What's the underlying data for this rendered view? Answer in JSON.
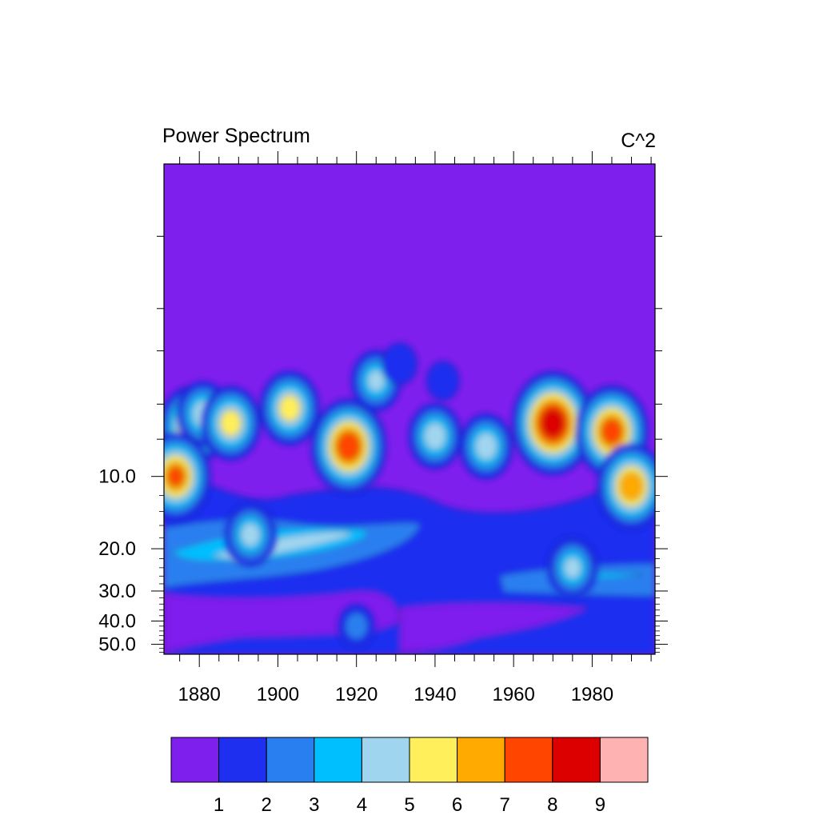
{
  "chart_data": {
    "type": "heatmap",
    "title": "Power Spectrum",
    "units": "C^2",
    "x_range": [
      1871,
      1996
    ],
    "y_range": [
      0.5,
      55
    ],
    "y_scale": "log",
    "y_inverted": true,
    "x_ticks": [
      "1880",
      "1900",
      "1920",
      "1940",
      "1960",
      "1980"
    ],
    "y_ticks": [
      "10.0",
      "20.0",
      "30.0",
      "40.0",
      "50.0"
    ],
    "levels": [
      "1",
      "2",
      "3",
      "4",
      "5",
      "6",
      "7",
      "8",
      "9"
    ],
    "colors": [
      "#7f1fee",
      "#1e2ff0",
      "#2a7ff0",
      "#00bfff",
      "#a0d5f0",
      "#ffef5a",
      "#ffaa00",
      "#ff4500",
      "#dd0000",
      "#ffb2b2"
    ],
    "hotspots": [
      {
        "year": 1878,
        "period": 6.2,
        "peak": 6.2
      },
      {
        "year": 1881,
        "period": 5.5,
        "peak": 4.5
      },
      {
        "year": 1888,
        "period": 6.0,
        "peak": 5.5
      },
      {
        "year": 1903,
        "period": 5.2,
        "peak": 5.5
      },
      {
        "year": 1918,
        "period": 7.5,
        "peak": 7.8
      },
      {
        "year": 1925,
        "period": 4.0,
        "peak": 4.0
      },
      {
        "year": 1931,
        "period": 3.4,
        "peak": 1.8
      },
      {
        "year": 1942,
        "period": 4.0,
        "peak": 1.5
      },
      {
        "year": 1940,
        "period": 6.8,
        "peak": 4.5
      },
      {
        "year": 1953,
        "period": 7.5,
        "peak": 4.5
      },
      {
        "year": 1970,
        "period": 6.0,
        "peak": 8.8
      },
      {
        "year": 1985,
        "period": 6.5,
        "peak": 7.5
      },
      {
        "year": 1874,
        "period": 10.0,
        "peak": 7.0
      },
      {
        "year": 1893,
        "period": 17.5,
        "peak": 4.2
      },
      {
        "year": 1990,
        "period": 11.0,
        "peak": 6.8
      },
      {
        "year": 1975,
        "period": 24.0,
        "peak": 4.0
      },
      {
        "year": 1920,
        "period": 42.0,
        "peak": 2.0
      }
    ]
  }
}
